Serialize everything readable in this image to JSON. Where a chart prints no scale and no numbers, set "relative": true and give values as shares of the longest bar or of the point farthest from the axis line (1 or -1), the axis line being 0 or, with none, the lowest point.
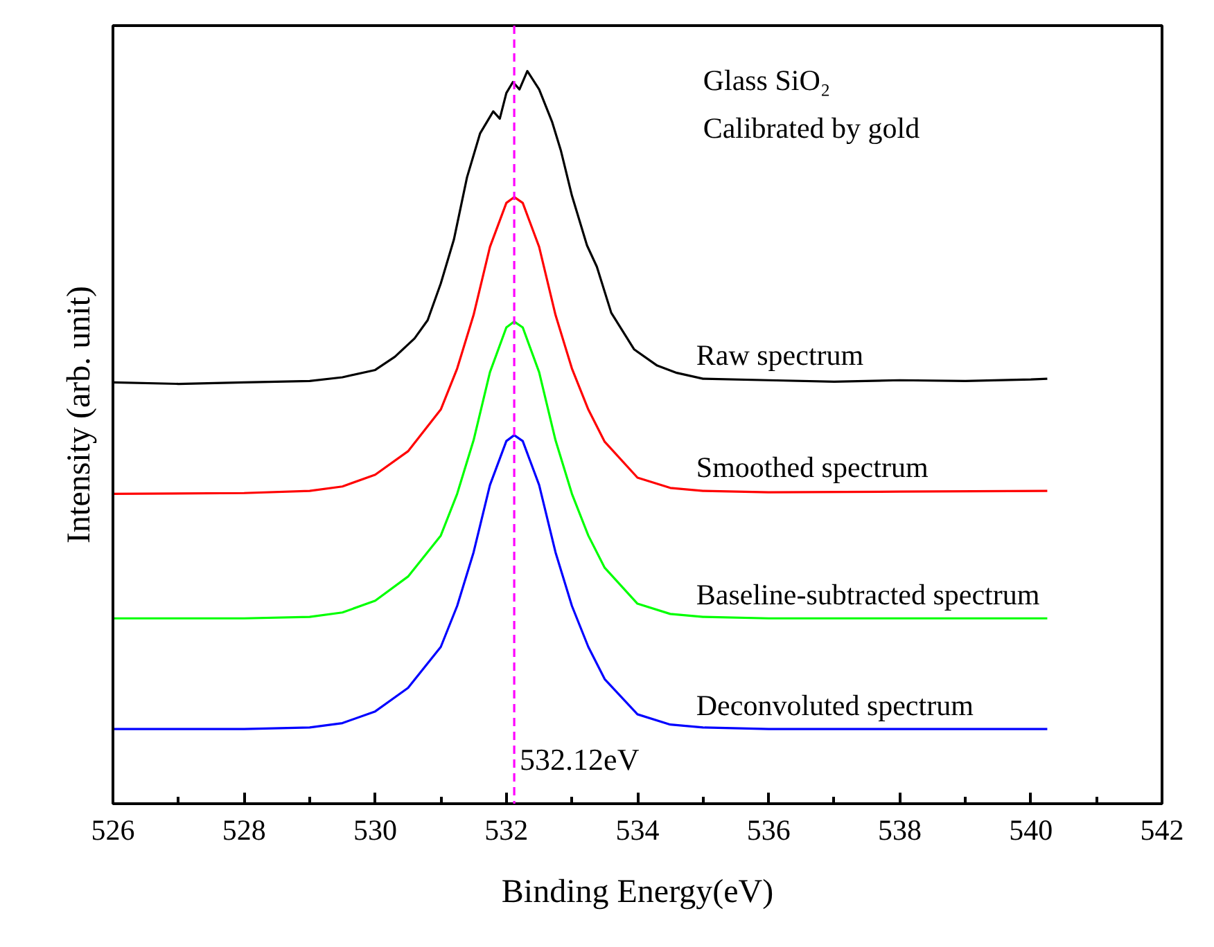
{
  "chart_data": {
    "type": "line",
    "relative": true,
    "xlabel": "Binding Energy(eV)",
    "ylabel": "Intensity (arb. unit)",
    "xlim": [
      526,
      542
    ],
    "xticks": [
      526,
      528,
      530,
      532,
      534,
      536,
      538,
      540,
      542
    ],
    "tick_labels": "x",
    "grid": false,
    "line_style": "solid",
    "marker": "none",
    "series": [
      {
        "name": "Raw spectrum",
        "color": "#000000",
        "x": [
          526,
          527,
          528,
          529,
          529.5,
          530,
          530.3,
          530.6,
          530.8,
          531,
          531.2,
          531.4,
          531.6,
          531.8,
          531.9,
          532,
          532.1,
          532.2,
          532.32,
          532.5,
          532.7,
          532.83,
          533,
          533.23,
          533.38,
          533.6,
          533.95,
          534.3,
          534.6,
          535,
          536,
          537,
          538,
          539,
          540,
          540.25
        ],
        "values": [
          0.575,
          0.573,
          0.575,
          0.577,
          0.582,
          0.592,
          0.61,
          0.635,
          0.66,
          0.71,
          0.77,
          0.855,
          0.915,
          0.945,
          0.935,
          0.97,
          0.985,
          0.975,
          1.0,
          0.975,
          0.93,
          0.892,
          0.83,
          0.762,
          0.733,
          0.67,
          0.62,
          0.598,
          0.588,
          0.58,
          0.578,
          0.576,
          0.578,
          0.577,
          0.579,
          0.58
        ]
      },
      {
        "name": "Smoothed spectrum",
        "color": "#ff0000",
        "x": [
          526,
          528,
          529,
          529.5,
          530,
          530.5,
          531,
          531.25,
          531.5,
          531.75,
          532,
          532.12,
          532.25,
          532.5,
          532.75,
          533,
          533.25,
          533.5,
          534,
          534.5,
          535,
          536,
          538,
          540.25
        ],
        "values": [
          0.423,
          0.424,
          0.427,
          0.433,
          0.449,
          0.481,
          0.538,
          0.594,
          0.667,
          0.76,
          0.82,
          0.828,
          0.82,
          0.76,
          0.667,
          0.594,
          0.538,
          0.494,
          0.445,
          0.431,
          0.427,
          0.425,
          0.426,
          0.427
        ]
      },
      {
        "name": "Baseline-subtracted spectrum",
        "color": "#00ff00",
        "x": [
          526,
          528,
          529,
          529.5,
          530,
          530.5,
          531,
          531.25,
          531.5,
          531.75,
          532,
          532.12,
          532.25,
          532.5,
          532.75,
          533,
          533.25,
          533.5,
          534,
          534.5,
          535,
          536,
          538,
          540.25
        ],
        "values": [
          0.253,
          0.253,
          0.255,
          0.261,
          0.277,
          0.31,
          0.366,
          0.423,
          0.496,
          0.589,
          0.65,
          0.658,
          0.65,
          0.589,
          0.496,
          0.423,
          0.366,
          0.322,
          0.273,
          0.259,
          0.255,
          0.253,
          0.253,
          0.253
        ]
      },
      {
        "name": "Deconvoluted spectrum",
        "color": "#0000ff",
        "x": [
          526,
          528,
          529,
          529.5,
          530,
          530.5,
          531,
          531.25,
          531.5,
          531.75,
          532,
          532.12,
          532.25,
          532.5,
          532.75,
          533,
          533.25,
          533.5,
          534,
          534.5,
          535,
          536,
          538,
          540.25
        ],
        "values": [
          0.102,
          0.102,
          0.104,
          0.11,
          0.126,
          0.158,
          0.214,
          0.27,
          0.343,
          0.435,
          0.495,
          0.503,
          0.495,
          0.435,
          0.343,
          0.27,
          0.214,
          0.17,
          0.122,
          0.108,
          0.104,
          0.102,
          0.102,
          0.102
        ]
      }
    ],
    "ref_lines": [
      {
        "axis": "x",
        "value": 532.12,
        "label": "532.12eV",
        "color": "#ff00ff",
        "line_style": "dashed"
      }
    ],
    "annotations": [
      "Glass SiO₂",
      "Calibrated by gold"
    ]
  }
}
